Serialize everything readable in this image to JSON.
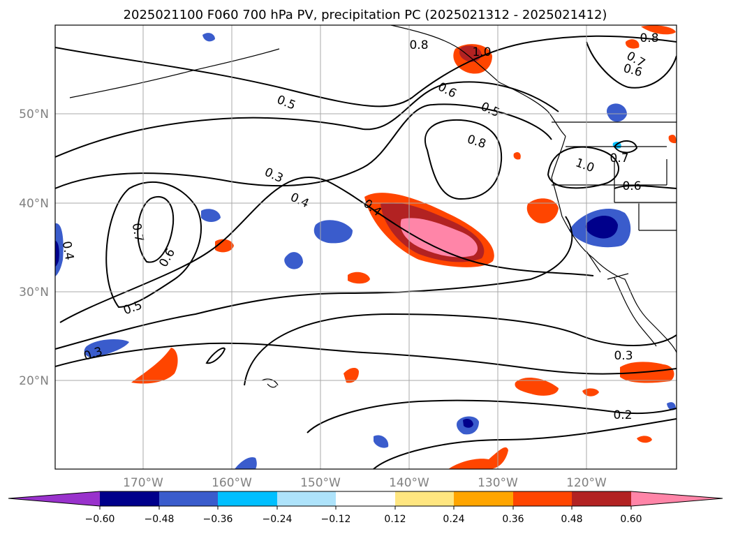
{
  "title": "2025021100 F060 700 hPa PV, precipitation PC (2025021312 - 2025021412)",
  "map": {
    "lat_ticks": [
      {
        "value": 50,
        "label": "50°N"
      },
      {
        "value": 40,
        "label": "40°N"
      },
      {
        "value": 30,
        "label": "30°N"
      },
      {
        "value": 20,
        "label": "20°N"
      }
    ],
    "lon_ticks": [
      {
        "value": -170,
        "label": "170°W"
      },
      {
        "value": -160,
        "label": "160°W"
      },
      {
        "value": -150,
        "label": "150°W"
      },
      {
        "value": -140,
        "label": "140°W"
      },
      {
        "value": -130,
        "label": "130°W"
      },
      {
        "value": -120,
        "label": "120°W"
      }
    ],
    "contour_labels": [
      "0.8",
      "0.6",
      "0.5",
      "0.8",
      "1.0",
      "0.5",
      "0.3",
      "0.4",
      "0.4",
      "0.7",
      "0.6",
      "0.5",
      "0.3",
      "0.4",
      "0.8",
      "0.7",
      "0.6",
      "0.7",
      "0.6",
      "0.3",
      "0.2",
      "1.0"
    ]
  },
  "colorbar": {
    "colors": [
      "#9932cc",
      "#00008b",
      "#3a5ccc",
      "#00bfff",
      "#aee3fb",
      "#ffffff",
      "#ffe680",
      "#ffa500",
      "#ff4500",
      "#b22222",
      "#ff85a8"
    ],
    "tick_labels": [
      "−0.60",
      "−0.48",
      "−0.36",
      "−0.24",
      "−0.12",
      "0.12",
      "0.24",
      "0.36",
      "0.48",
      "0.60"
    ]
  }
}
